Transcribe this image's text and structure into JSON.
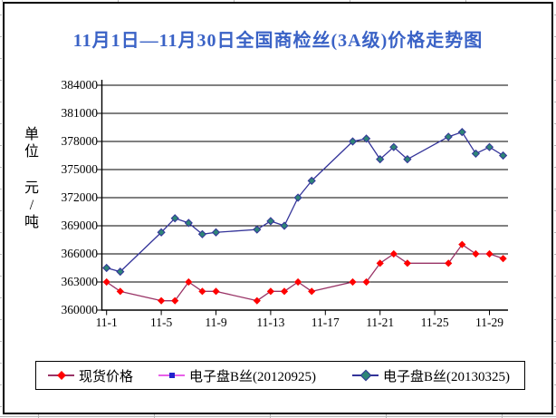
{
  "title": {
    "text": "11月1日—11月30日全国商检丝(3A级)价格走势图",
    "color": "#3a62c6"
  },
  "y_axis": {
    "unit_label": "单位 元/吨",
    "tick_labels": [
      "384000",
      "381000",
      "378000",
      "375000",
      "372000",
      "369000",
      "366000",
      "363000",
      "360000"
    ]
  },
  "x_axis": {
    "tick_labels": [
      "11-1",
      "11-5",
      "11-9",
      "11-13",
      "11-17",
      "11-21",
      "11-25",
      "11-29"
    ],
    "tick_days": [
      1,
      5,
      9,
      13,
      17,
      21,
      25,
      29
    ]
  },
  "legend": {
    "items": [
      {
        "label": "现货价格",
        "line_color": "#993366",
        "marker": "diamond",
        "marker_color": "#ff0000"
      },
      {
        "label": "电子盘B丝(20120925)",
        "line_color": "#e860e8",
        "marker": "square",
        "marker_color": "#2222cc"
      },
      {
        "label": "电子盘B丝(20130325)",
        "line_color": "#333399",
        "marker": "diamond",
        "marker_color": "#2e8577"
      }
    ]
  },
  "chart_data": {
    "type": "line",
    "title": "11月1日—11月30日全国商检丝(3A级)价格走势图",
    "ylabel": "单位 元/吨",
    "ylim": [
      360000,
      384000
    ],
    "y_tick_step": 3000,
    "grid": "horizontal",
    "legend_position": "bottom",
    "x_axis_note": "time axis Nov 1 - Nov 30, data on weekdays only",
    "x_categories": [
      "11-1",
      "11-2",
      "11-5",
      "11-6",
      "11-7",
      "11-8",
      "11-9",
      "11-12",
      "11-13",
      "11-14",
      "11-15",
      "11-16",
      "11-19",
      "11-20",
      "11-21",
      "11-22",
      "11-23",
      "11-26",
      "11-27",
      "11-28",
      "11-29",
      "11-30"
    ],
    "x_day_of_month": [
      1,
      2,
      5,
      6,
      7,
      8,
      9,
      12,
      13,
      14,
      15,
      16,
      19,
      20,
      21,
      22,
      23,
      26,
      27,
      28,
      29,
      30
    ],
    "series": [
      {
        "name": "现货价格",
        "values": [
          363000,
          362000,
          361000,
          361000,
          363000,
          362000,
          362000,
          361000,
          362000,
          362000,
          363000,
          362000,
          363000,
          363000,
          365000,
          366000,
          365000,
          365000,
          367000,
          366000,
          366000,
          365500
        ]
      },
      {
        "name": "电子盘B丝(20120925)",
        "values": []
      },
      {
        "name": "电子盘B丝(20130325)",
        "values": [
          364500,
          364100,
          368300,
          369800,
          369300,
          368100,
          368300,
          368600,
          369500,
          369000,
          372000,
          373800,
          378000,
          378300,
          376100,
          377400,
          376100,
          378500,
          379000,
          376700,
          377400,
          376500
        ]
      }
    ]
  }
}
